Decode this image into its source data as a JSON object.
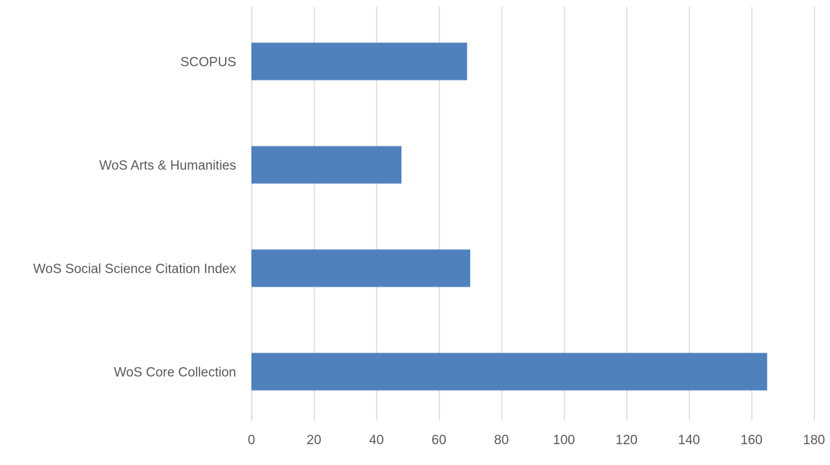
{
  "chart_data": {
    "type": "bar",
    "orientation": "horizontal",
    "categories": [
      "SCOPUS",
      "WoS Arts & Humanities",
      "WoS Social Science Citation Index",
      "WoS Core Collection"
    ],
    "values": [
      69,
      48,
      70,
      165
    ],
    "xlim": [
      0,
      180
    ],
    "x_ticks": [
      "0",
      "20",
      "40",
      "60",
      "80",
      "100",
      "120",
      "140",
      "160",
      "180"
    ],
    "title": "",
    "xlabel": "",
    "ylabel": "",
    "grid": "vertical",
    "legend": "none",
    "bar_color": "#4f81bd",
    "grid_color": "#d9d9d9",
    "text_color": "#595959"
  }
}
